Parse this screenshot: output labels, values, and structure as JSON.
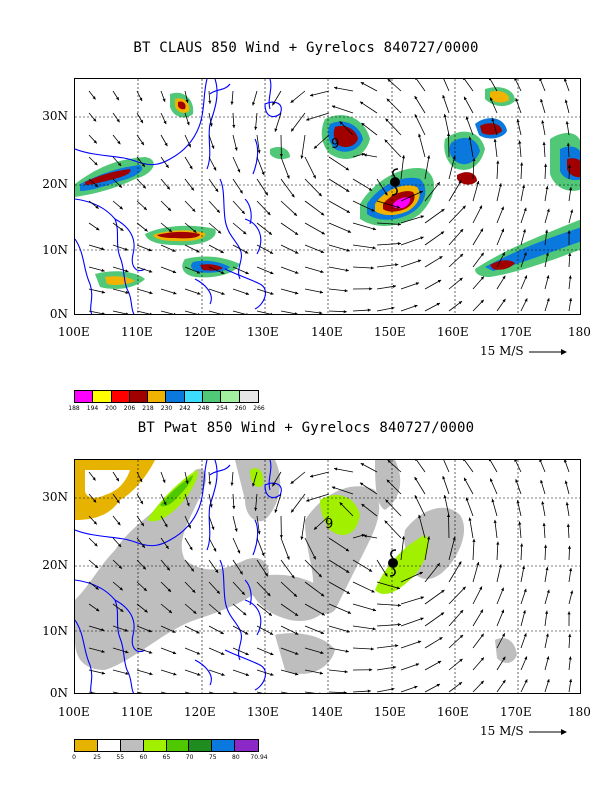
{
  "top_map": {
    "title": "BT CLAUS 850 Wind + Gyrelocs 840727/0000",
    "lat_labels": [
      "30N",
      "20N",
      "10N",
      "0N"
    ],
    "lon_labels": [
      "100E",
      "110E",
      "120E",
      "130E",
      "140E",
      "150E",
      "160E",
      "170E",
      "180"
    ],
    "scale_label": "15 M/S",
    "gyre_marker": "9",
    "legend": {
      "colors": [
        "#ff00ff",
        "#ffff00",
        "#ff0000",
        "#a00000",
        "#f0b400",
        "#0a78dc",
        "#3cdcff",
        "#50c878",
        "#a0f0a0",
        "#e6e6e6"
      ],
      "labels": [
        "188",
        "194",
        "200",
        "206",
        "218",
        "230",
        "242",
        "248",
        "254",
        "260",
        "266"
      ]
    }
  },
  "bottom_map": {
    "title": "BT Pwat 850 Wind + Gyrelocs 840727/0000",
    "lat_labels": [
      "30N",
      "20N",
      "10N",
      "0N"
    ],
    "lon_labels": [
      "100E",
      "110E",
      "120E",
      "130E",
      "140E",
      "150E",
      "160E",
      "170E",
      "180"
    ],
    "scale_label": "15 M/S",
    "gyre_marker": "9",
    "legend": {
      "colors": [
        "#e6b400",
        "#ffffff",
        "#bebebe",
        "#a0f000",
        "#50c800",
        "#1e8c1e",
        "#0a78dc",
        "#8c28c8"
      ],
      "labels": [
        "0",
        "25",
        "55",
        "60",
        "65",
        "70",
        "75",
        "80",
        "70.94"
      ]
    }
  },
  "colors": {
    "coastline": "#0000ff",
    "frame": "#000000",
    "vector": "#000000"
  }
}
